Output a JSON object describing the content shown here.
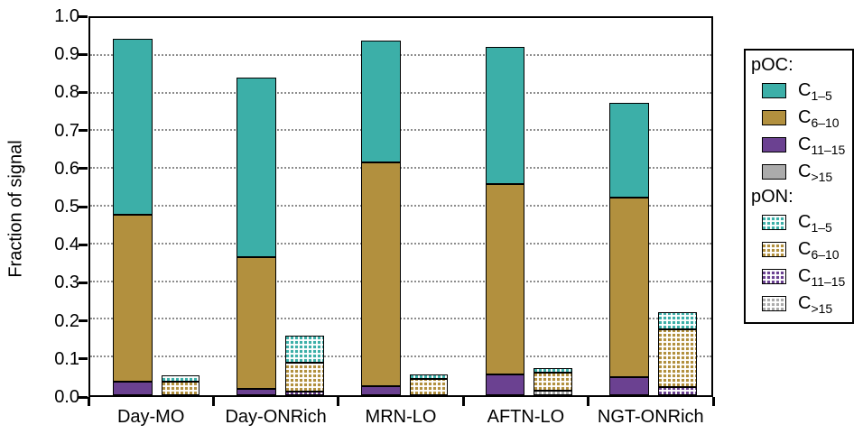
{
  "figure": {
    "y_axis_title": "Fraction of signal"
  },
  "chart_data": {
    "type": "bar",
    "stacked": true,
    "title": "",
    "xlabel": "",
    "ylabel": "Fraction of signal",
    "ylim": [
      0.0,
      1.0
    ],
    "yticks": [
      "1.0",
      "0.9",
      "0.8",
      "0.7",
      "0.6",
      "0.5",
      "0.4",
      "0.3",
      "0.2",
      "0.1",
      "0.0"
    ],
    "grid": "horizontal dotted gridlines at 0.1 through 0.9",
    "legend_position": "outside right, boxed",
    "categories": [
      "Day-MO",
      "Day-ONRich",
      "MRN-LO",
      "AFTN-LO",
      "NGT-ONRich"
    ],
    "palette": {
      "C1-5": "#3cafa8",
      "C6-10": "#b2903e",
      "C11-15": "#6b4191",
      "C>15": "#ababab"
    },
    "note": "Two stacks per category: solid pOC bar and hatched pON bar. Segments listed bottom-to-top as fractions of signal.",
    "bars": [
      {
        "category": "Day-MO",
        "stack": "pOC",
        "hatched": false,
        "segments": [
          [
            "C11-15",
            0.035
          ],
          [
            "C6-10",
            0.444
          ],
          [
            "C1-5",
            0.465
          ]
        ],
        "total": 0.944
      },
      {
        "category": "Day-MO",
        "stack": "pON",
        "hatched": true,
        "segments": [
          [
            "C6-10",
            0.037
          ],
          [
            "C1-5",
            0.016
          ]
        ],
        "total": 0.053
      },
      {
        "category": "Day-ONRich",
        "stack": "pOC",
        "hatched": false,
        "segments": [
          [
            "C11-15",
            0.017
          ],
          [
            "C6-10",
            0.348
          ],
          [
            "C1-5",
            0.477
          ]
        ],
        "total": 0.842
      },
      {
        "category": "Day-ONRich",
        "stack": "pON",
        "hatched": true,
        "segments": [
          [
            "C11-15",
            0.01
          ],
          [
            "C6-10",
            0.075
          ],
          [
            "C1-5",
            0.073
          ]
        ],
        "total": 0.158
      },
      {
        "category": "MRN-LO",
        "stack": "pOC",
        "hatched": false,
        "segments": [
          [
            "C11-15",
            0.025
          ],
          [
            "C6-10",
            0.593
          ],
          [
            "C1-5",
            0.323
          ]
        ],
        "total": 0.941
      },
      {
        "category": "MRN-LO",
        "stack": "pON",
        "hatched": true,
        "segments": [
          [
            "C6-10",
            0.043
          ],
          [
            "C1-5",
            0.012
          ]
        ],
        "total": 0.055
      },
      {
        "category": "AFTN-LO",
        "stack": "pOC",
        "hatched": false,
        "segments": [
          [
            "C11-15",
            0.055
          ],
          [
            "C6-10",
            0.506
          ],
          [
            "C1-5",
            0.362
          ]
        ],
        "total": 0.923
      },
      {
        "category": "AFTN-LO",
        "stack": "pON",
        "hatched": true,
        "segments": [
          [
            "C>15",
            0.011
          ],
          [
            "C6-10",
            0.048
          ],
          [
            "C1-5",
            0.014
          ]
        ],
        "total": 0.073
      },
      {
        "category": "NGT-ONRich",
        "stack": "pOC",
        "hatched": false,
        "segments": [
          [
            "C11-15",
            0.049
          ],
          [
            "C6-10",
            0.476
          ],
          [
            "C1-5",
            0.251
          ]
        ],
        "total": 0.776
      },
      {
        "category": "NGT-ONRich",
        "stack": "pON",
        "hatched": true,
        "segments": [
          [
            "C11-15",
            0.021
          ],
          [
            "C6-10",
            0.154
          ],
          [
            "C1-5",
            0.046
          ]
        ],
        "total": 0.221
      }
    ]
  },
  "legend": {
    "sections": [
      {
        "title": "pOC:",
        "hatched": false,
        "items": [
          {
            "base": "C",
            "sub": "1–5",
            "key": "C1-5"
          },
          {
            "base": "C",
            "sub": "6–10",
            "key": "C6-10"
          },
          {
            "base": "C",
            "sub": "11–15",
            "key": "C11-15"
          },
          {
            "base": "C",
            "sub": ">15",
            "key": "C>15"
          }
        ]
      },
      {
        "title": "pON:",
        "hatched": true,
        "items": [
          {
            "base": "C",
            "sub": "1–5",
            "key": "C1-5"
          },
          {
            "base": "C",
            "sub": "6–10",
            "key": "C6-10"
          },
          {
            "base": "C",
            "sub": "11–15",
            "key": "C11-15"
          },
          {
            "base": "C",
            "sub": ">15",
            "key": "C>15"
          }
        ]
      }
    ]
  }
}
